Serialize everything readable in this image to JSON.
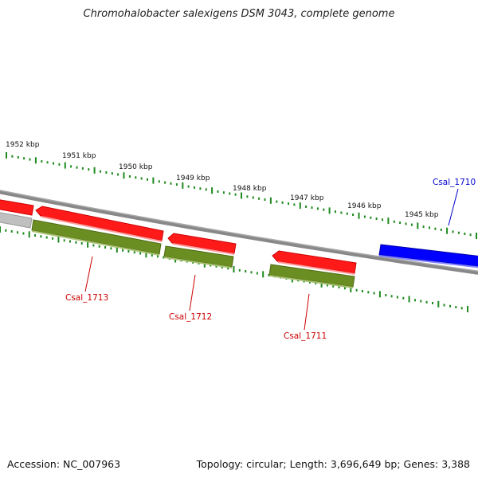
{
  "title": "Chromohalobacter salexigens DSM 3043, complete genome",
  "footer": {
    "accession": "Accession: NC_007963",
    "summary": "Topology: circular; Length: 3,696,649 bp; Genes: 3,388"
  },
  "colors": {
    "backbone": "#7a7a7a",
    "cds": "#ff0000",
    "gene": "#6b8e23",
    "cds_forward": "#0000ff",
    "gene_partial": "#b0b0b0",
    "tick": "#1f8a1f"
  },
  "scale": {
    "unit": "kbp",
    "labels": [
      "1952 kbp",
      "1951 kbp",
      "1950 kbp",
      "1949 kbp",
      "1948 kbp",
      "1947 kbp",
      "1946 kbp",
      "1945 kbp"
    ]
  },
  "features": [
    {
      "name": "Csal_1713",
      "color": "#cc0000"
    },
    {
      "name": "Csal_1712",
      "color": "#cc0000"
    },
    {
      "name": "Csal_1711",
      "color": "#cc0000"
    },
    {
      "name": "Csal_1710",
      "color": "#0000cc"
    }
  ]
}
